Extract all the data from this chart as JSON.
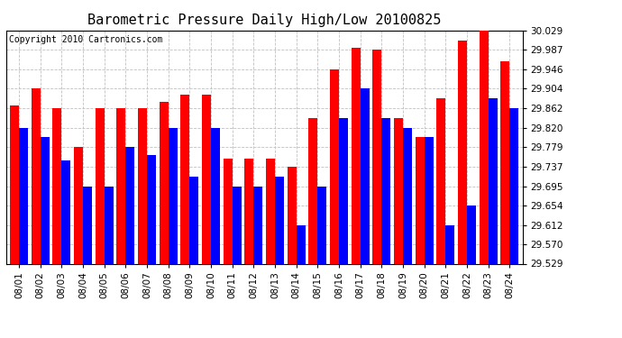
{
  "title": "Barometric Pressure Daily High/Low 20100825",
  "copyright": "Copyright 2010 Cartronics.com",
  "dates": [
    "08/01",
    "08/02",
    "08/03",
    "08/04",
    "08/05",
    "08/06",
    "08/07",
    "08/08",
    "08/09",
    "08/10",
    "08/11",
    "08/12",
    "08/13",
    "08/14",
    "08/15",
    "08/16",
    "08/17",
    "08/18",
    "08/19",
    "08/20",
    "08/21",
    "08/22",
    "08/23",
    "08/24"
  ],
  "highs": [
    29.868,
    29.905,
    29.862,
    29.779,
    29.862,
    29.862,
    29.862,
    29.875,
    29.892,
    29.892,
    29.754,
    29.754,
    29.754,
    29.737,
    29.841,
    29.946,
    29.992,
    29.987,
    29.841,
    29.8,
    29.883,
    30.008,
    30.029,
    29.962
  ],
  "lows": [
    29.82,
    29.8,
    29.75,
    29.695,
    29.695,
    29.779,
    29.762,
    29.82,
    29.716,
    29.82,
    29.695,
    29.695,
    29.716,
    29.612,
    29.695,
    29.841,
    29.904,
    29.841,
    29.82,
    29.8,
    29.612,
    29.654,
    29.883,
    29.862
  ],
  "high_color": "#ff0000",
  "low_color": "#0000ff",
  "bg_color": "#ffffff",
  "plot_bg_color": "#ffffff",
  "grid_color": "#c0c0c0",
  "ylim_min": 29.529,
  "ylim_max": 30.029,
  "yticks": [
    29.529,
    29.57,
    29.612,
    29.654,
    29.695,
    29.737,
    29.779,
    29.82,
    29.862,
    29.904,
    29.946,
    29.987,
    30.029
  ],
  "bar_width": 0.42,
  "title_fontsize": 11,
  "tick_fontsize": 7.5,
  "copyright_fontsize": 7
}
